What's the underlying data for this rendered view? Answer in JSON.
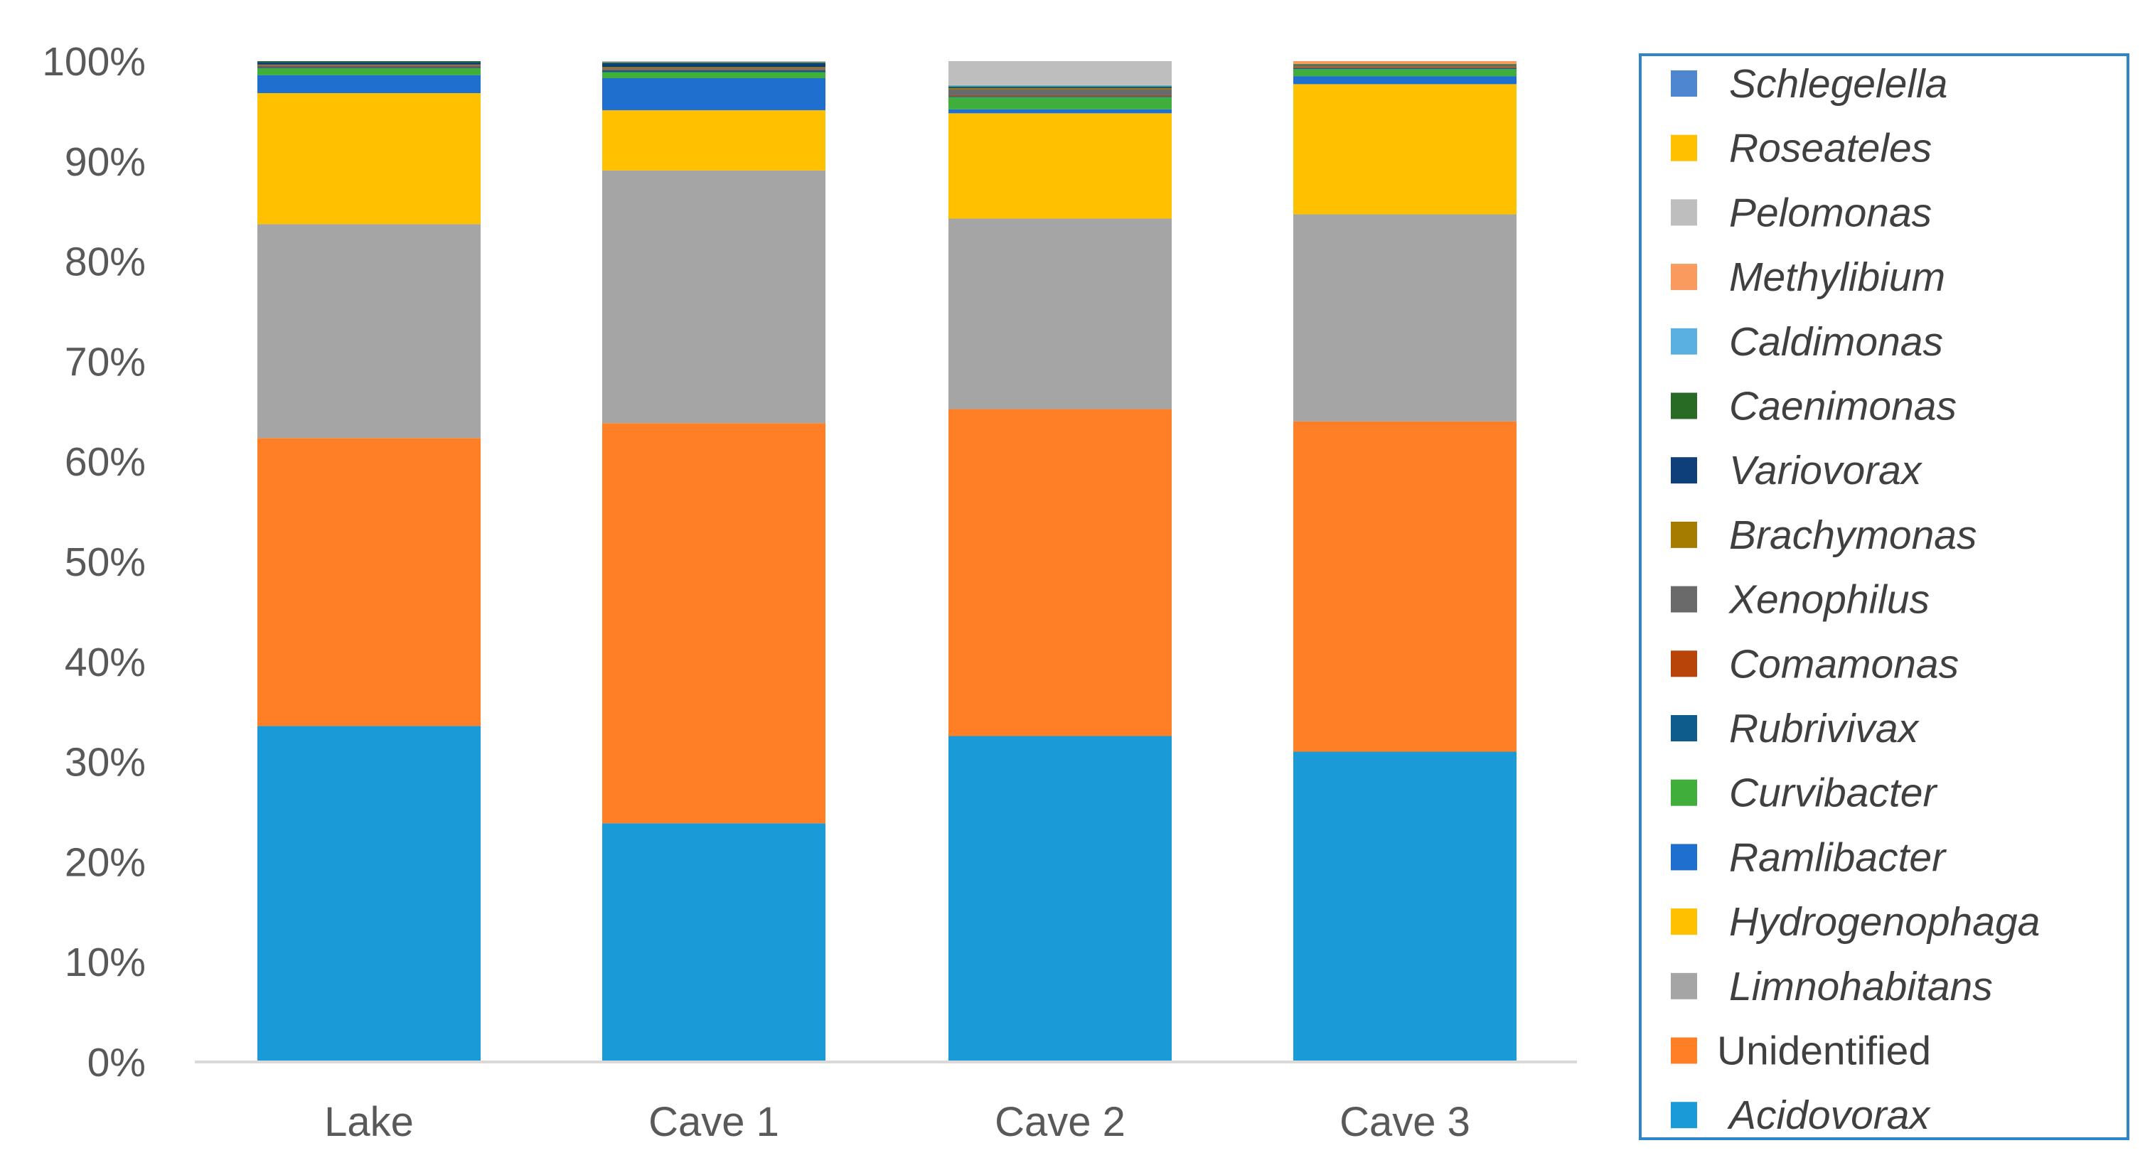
{
  "chart_data": {
    "type": "bar",
    "stacked": true,
    "percent": true,
    "categories": [
      "Lake",
      "Cave 1",
      "Cave 2",
      "Cave 3"
    ],
    "yticks": [
      "0%",
      "10%",
      "20%",
      "30%",
      "40%",
      "50%",
      "60%",
      "70%",
      "80%",
      "90%",
      "100%"
    ],
    "ylim": [
      0,
      100
    ],
    "grid": false,
    "legend_position": "right",
    "series": [
      {
        "name": "Acidovorax",
        "color": "#1A9AD6",
        "italic": true,
        "values": [
          33.6,
          23.8,
          32.5,
          31.0
        ]
      },
      {
        "name": "Unidentified",
        "color": "#FF7F27",
        "italic": false,
        "values": [
          28.8,
          39.9,
          32.6,
          33.0
        ]
      },
      {
        "name": "Limnohabitans",
        "color": "#A5A5A5",
        "italic": true,
        "values": [
          21.4,
          25.2,
          19.0,
          20.7
        ]
      },
      {
        "name": "Hydrogenophaga",
        "color": "#FFC000",
        "italic": true,
        "values": [
          13.1,
          6.0,
          10.5,
          13.0
        ]
      },
      {
        "name": "Ramlibacter",
        "color": "#1F6FCF",
        "italic": true,
        "values": [
          1.8,
          3.2,
          0.4,
          0.8
        ]
      },
      {
        "name": "Curvibacter",
        "color": "#3FAE3A",
        "italic": true,
        "values": [
          0.7,
          0.6,
          1.2,
          0.7
        ]
      },
      {
        "name": "Rubrivivax",
        "color": "#0E5C8C",
        "italic": true,
        "values": [
          0.1,
          0.2,
          0.1,
          0.1
        ]
      },
      {
        "name": "Comamonas",
        "color": "#B8440A",
        "italic": true,
        "values": [
          0.1,
          0.1,
          0.1,
          0.1
        ]
      },
      {
        "name": "Xenophilus",
        "color": "#6A6A6A",
        "italic": true,
        "values": [
          0.1,
          0.1,
          0.6,
          0.1
        ]
      },
      {
        "name": "Brachymonas",
        "color": "#A67C00",
        "italic": true,
        "values": [
          0.05,
          0.1,
          0.1,
          0.05
        ]
      },
      {
        "name": "Variovorax",
        "color": "#0E3F78",
        "italic": true,
        "values": [
          0.25,
          0.4,
          0.1,
          0.05
        ]
      },
      {
        "name": "Caenimonas",
        "color": "#286B24",
        "italic": true,
        "values": [
          0.1,
          0.1,
          0.1,
          0.1
        ]
      },
      {
        "name": "Caldimonas",
        "color": "#5AB0E0",
        "italic": true,
        "values": [
          0.0,
          0.0,
          0.1,
          0.0
        ]
      },
      {
        "name": "Methylibium",
        "color": "#F99A5E",
        "italic": true,
        "values": [
          0.0,
          0.0,
          0.0,
          0.3
        ]
      },
      {
        "name": "Pelomonas",
        "color": "#BEBEBE",
        "italic": true,
        "values": [
          0.0,
          0.1,
          2.4,
          0.0
        ]
      },
      {
        "name": "Roseateles",
        "color": "#FFC000",
        "italic": true,
        "values": [
          0.0,
          0.0,
          0.0,
          0.0
        ]
      },
      {
        "name": "Schlegelella",
        "color": "#4F86D0",
        "italic": true,
        "values": [
          0.0,
          0.0,
          0.0,
          0.0
        ]
      }
    ]
  }
}
